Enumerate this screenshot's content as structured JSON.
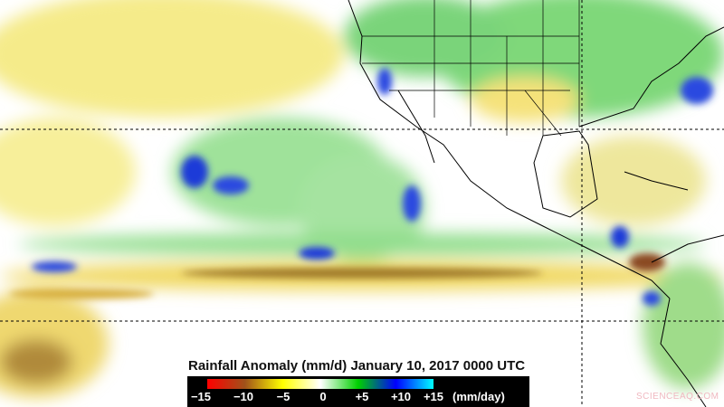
{
  "title": "Rainfall Anomaly (mm/d) January 10, 2017 0000 UTC",
  "legend": {
    "ticks": [
      "−15",
      "−10",
      "−5",
      "0",
      "+5",
      "+10",
      "+15"
    ],
    "unit": "(mm/day)",
    "colors": [
      "#ff0000",
      "#a0521a",
      "#ffff00",
      "#ffffff",
      "#00d000",
      "#0000ff",
      "#00ffff"
    ]
  },
  "watermark": "SCIENCEAQ.COM"
}
